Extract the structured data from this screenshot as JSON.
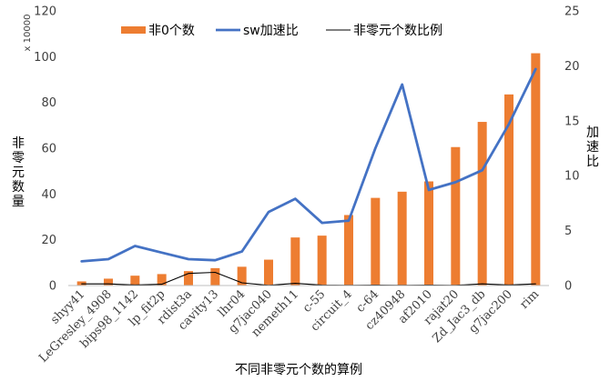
{
  "chart_data": {
    "type": "bar",
    "categories": [
      "shyy41",
      "LeGresley_4908",
      "bips98_1142",
      "lp_fit2p",
      "rdist3a",
      "cavity13",
      "lhr04",
      "g7jac040",
      "nemeth11",
      "c-55",
      "circuit_4",
      "c-64",
      "cz40948",
      "af2010",
      "rajat20",
      "Zd_Jac3_db",
      "g7jac200",
      "rim"
    ],
    "series": [
      {
        "name": "非0个数",
        "kind": "bar",
        "axis": "left",
        "color": "#ED7D31",
        "values": [
          1.8,
          3.0,
          4.3,
          5.0,
          6.3,
          7.6,
          8.2,
          11.3,
          21.0,
          21.8,
          30.8,
          38.3,
          41.0,
          45.5,
          60.5,
          71.5,
          83.5,
          101.5
        ]
      },
      {
        "name": "sw加速比",
        "kind": "line",
        "axis": "right",
        "color": "#4472C4",
        "values": [
          2.2,
          2.4,
          3.6,
          3.0,
          2.4,
          2.3,
          3.1,
          6.7,
          7.9,
          5.7,
          5.9,
          12.5,
          18.3,
          8.7,
          9.4,
          10.5,
          14.7,
          19.7
        ]
      },
      {
        "name": "非零元个数比例",
        "kind": "line",
        "axis": "right",
        "color": "#000000",
        "values": [
          0.15,
          0.15,
          0.05,
          0.12,
          1.1,
          1.2,
          0.25,
          0.02,
          0.2,
          0.03,
          0.02,
          0.03,
          0.02,
          0.03,
          0.02,
          0.15,
          0.05,
          0.15
        ]
      }
    ],
    "xlabel": "不同非零元个数的算例",
    "ylabel_left": "非零元数量",
    "ylabel_right": "加速比",
    "left_axis_unit": "x 10000",
    "ylim_left": [
      0,
      120
    ],
    "yticks_left": [
      "0",
      "20",
      "40",
      "60",
      "80",
      "100",
      "120"
    ],
    "ylim_right": [
      0,
      25
    ],
    "yticks_right": [
      "0",
      "5",
      "10",
      "15",
      "20",
      "25"
    ],
    "legend_position": "top-center",
    "grid": false
  }
}
